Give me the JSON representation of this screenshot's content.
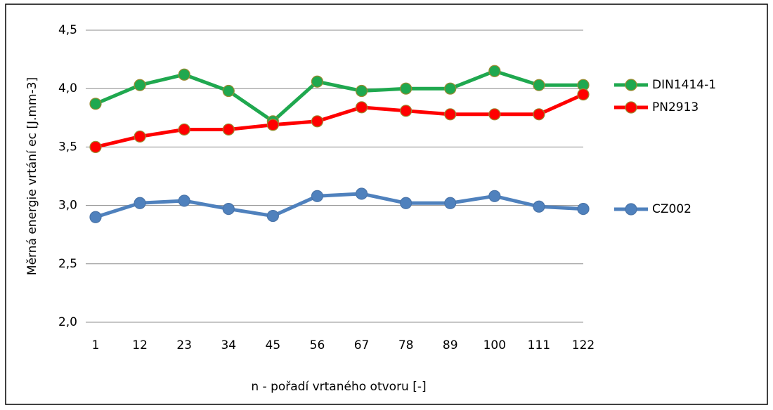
{
  "chart_data": {
    "type": "line",
    "y_label": "Měrná energie vrtání ec [J.mm-3]",
    "x_label": "n - pořadí vrtaného otvoru [-]",
    "categories": [
      "1",
      "12",
      "23",
      "34",
      "45",
      "56",
      "67",
      "78",
      "89",
      "100",
      "111",
      "122"
    ],
    "series": [
      {
        "name": "DIN1414-1",
        "color": "#1fa84f",
        "values": [
          3.87,
          4.03,
          4.12,
          3.98,
          3.72,
          4.06,
          3.98,
          4.0,
          4.0,
          4.15,
          4.03,
          4.03
        ]
      },
      {
        "name": "PN2913",
        "color": "#ff0000",
        "values": [
          3.5,
          3.59,
          3.65,
          3.65,
          3.69,
          3.72,
          3.84,
          3.81,
          3.78,
          3.78,
          3.78,
          3.95
        ]
      },
      {
        "name": "CZ002",
        "color": "#4f81bd",
        "values": [
          2.9,
          3.02,
          3.04,
          2.97,
          2.91,
          3.08,
          3.1,
          3.02,
          3.02,
          3.08,
          2.99,
          2.97
        ]
      }
    ],
    "ylim": [
      2.0,
      4.5
    ],
    "yticks": [
      {
        "value": 2.0,
        "label": "2,0"
      },
      {
        "value": 2.5,
        "label": "2,5"
      },
      {
        "value": 3.0,
        "label": "3,0"
      },
      {
        "value": 3.5,
        "label": "3,5"
      },
      {
        "value": 4.0,
        "label": "4,0"
      },
      {
        "value": 4.5,
        "label": "4,5"
      }
    ],
    "grid": true,
    "legend": "right"
  }
}
